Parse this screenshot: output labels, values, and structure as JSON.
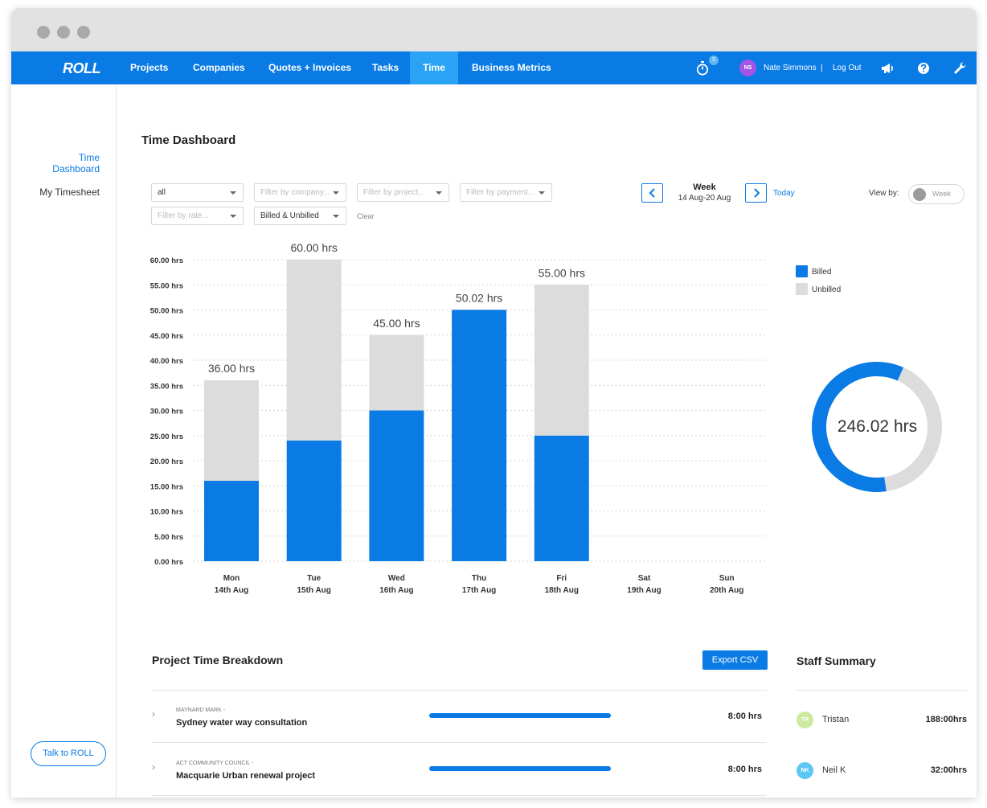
{
  "app": {
    "logo": "ROLL"
  },
  "nav": {
    "items": [
      {
        "label": "Projects",
        "active": false
      },
      {
        "label": "Companies",
        "active": false
      },
      {
        "label": "Quotes + Invoices",
        "active": false
      },
      {
        "label": "Tasks",
        "active": false
      },
      {
        "label": "Time",
        "active": true
      },
      {
        "label": "Business Metrics",
        "active": false
      }
    ],
    "timer_badge": "3",
    "user_initials": "NS",
    "user_name": "Nate Simmons",
    "separator": "|",
    "logout": "Log Out",
    "icons": [
      "stopwatch-icon",
      "megaphone-icon",
      "help-icon",
      "wrench-icon"
    ]
  },
  "sidebar": {
    "items": [
      {
        "label": "Time Dashboard",
        "active": true
      },
      {
        "label": "My Timesheet",
        "active": false
      }
    ],
    "talk_button": "Talk to ROLL"
  },
  "main": {
    "title": "Time Dashboard",
    "filters": {
      "status": "all",
      "company_placeholder": "Filter by company...",
      "project_placeholder": "Filter by project...",
      "payment_placeholder": "Filter by payment...",
      "rate_placeholder": "Filter by rate...",
      "billing": "Billed & Unbilled",
      "clear": "Clear"
    },
    "week": {
      "label": "Week",
      "range": "14 Aug-20 Aug",
      "today": "Today",
      "prev_icon": "chevron-left-icon",
      "next_icon": "chevron-right-icon"
    },
    "view_by": {
      "label": "View by:",
      "value": "Week"
    }
  },
  "colors": {
    "accent": "#0a7be4",
    "billed": "#0a7be4",
    "unbilled": "#dcdcdc",
    "nav_active": "#2aa3f5"
  },
  "chart_data": {
    "type": "bar",
    "stacked": true,
    "categories": [
      "Mon",
      "Tue",
      "Wed",
      "Thu",
      "Fri",
      "Sat",
      "Sun"
    ],
    "dates": [
      "14th Aug",
      "15th Aug",
      "16th Aug",
      "17th Aug",
      "18th Aug",
      "19th Aug",
      "20th Aug"
    ],
    "series": [
      {
        "name": "Billed",
        "values": [
          16,
          24,
          30,
          50.02,
          25,
          0,
          0
        ]
      },
      {
        "name": "Unbilled",
        "values": [
          20,
          36,
          15,
          0,
          30,
          0,
          0
        ]
      }
    ],
    "totals": [
      "36.00 hrs",
      "60.00 hrs",
      "45.00 hrs",
      "50.02 hrs",
      "55.00 hrs",
      "",
      ""
    ],
    "yticks": [
      "0.00 hrs",
      "5.00 hrs",
      "10.00 hrs",
      "15.00 hrs",
      "20.00 hrs",
      "25.00 hrs",
      "30.00 hrs",
      "35.00 hrs",
      "40.00 hrs",
      "45.00 hrs",
      "50.00 hrs",
      "55.00 hrs",
      "60.00 hrs"
    ],
    "ylim": [
      0,
      60
    ],
    "grid": true,
    "legend": "right"
  },
  "donut": {
    "total": "246.02 hrs",
    "billed_fraction": 0.59,
    "legend": [
      {
        "name": "Billed",
        "color": "#0a7be4"
      },
      {
        "name": "Unbilled",
        "color": "#dcdcdc"
      }
    ]
  },
  "breakdown": {
    "title": "Project Time Breakdown",
    "export": "Export CSV",
    "rows": [
      {
        "company": "MAYNARD MARK -",
        "project": "Sydney water way consultation",
        "hours": "8:00 hrs",
        "fill": 1.0
      },
      {
        "company": "ACT COMMUNITY COUNCIL -",
        "project": "Macquarie Urban renewal project",
        "hours": "8:00 hrs",
        "fill": 1.0
      }
    ]
  },
  "staff": {
    "title": "Staff Summary",
    "rows": [
      {
        "initials": "TR",
        "name": "Tristan",
        "hours": "188:00hrs",
        "color": "#cde8a1"
      },
      {
        "initials": "NK",
        "name": "Neil K",
        "hours": "32:00hrs",
        "color": "#5cc7f2"
      }
    ]
  }
}
